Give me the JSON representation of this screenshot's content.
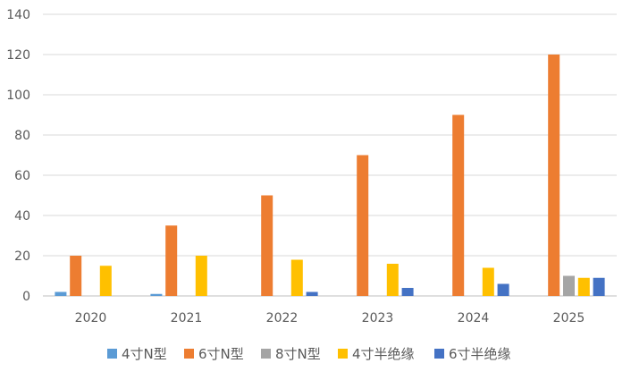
{
  "chart_data": {
    "type": "bar",
    "title": "",
    "xlabel": "",
    "ylabel": "",
    "categories": [
      "2020",
      "2021",
      "2022",
      "2023",
      "2024",
      "2025"
    ],
    "ylim": [
      0,
      140
    ],
    "yticks": [
      0,
      20,
      40,
      60,
      80,
      100,
      120,
      140
    ],
    "grid": true,
    "legend_position": "bottom",
    "series": [
      {
        "name": "4寸N型",
        "color": "#5B9BD5",
        "values": [
          2,
          1,
          0,
          0,
          0,
          0
        ]
      },
      {
        "name": "6寸N型",
        "color": "#ED7D31",
        "values": [
          20,
          35,
          50,
          70,
          90,
          120
        ]
      },
      {
        "name": "8寸N型",
        "color": "#A5A5A5",
        "values": [
          0,
          0,
          0,
          0,
          0,
          10
        ]
      },
      {
        "name": "4寸半绝缘",
        "color": "#FFC000",
        "values": [
          15,
          20,
          18,
          16,
          14,
          9
        ]
      },
      {
        "name": "6寸半绝缘",
        "color": "#4472C4",
        "values": [
          0,
          0,
          2,
          4,
          6,
          9
        ]
      }
    ]
  }
}
